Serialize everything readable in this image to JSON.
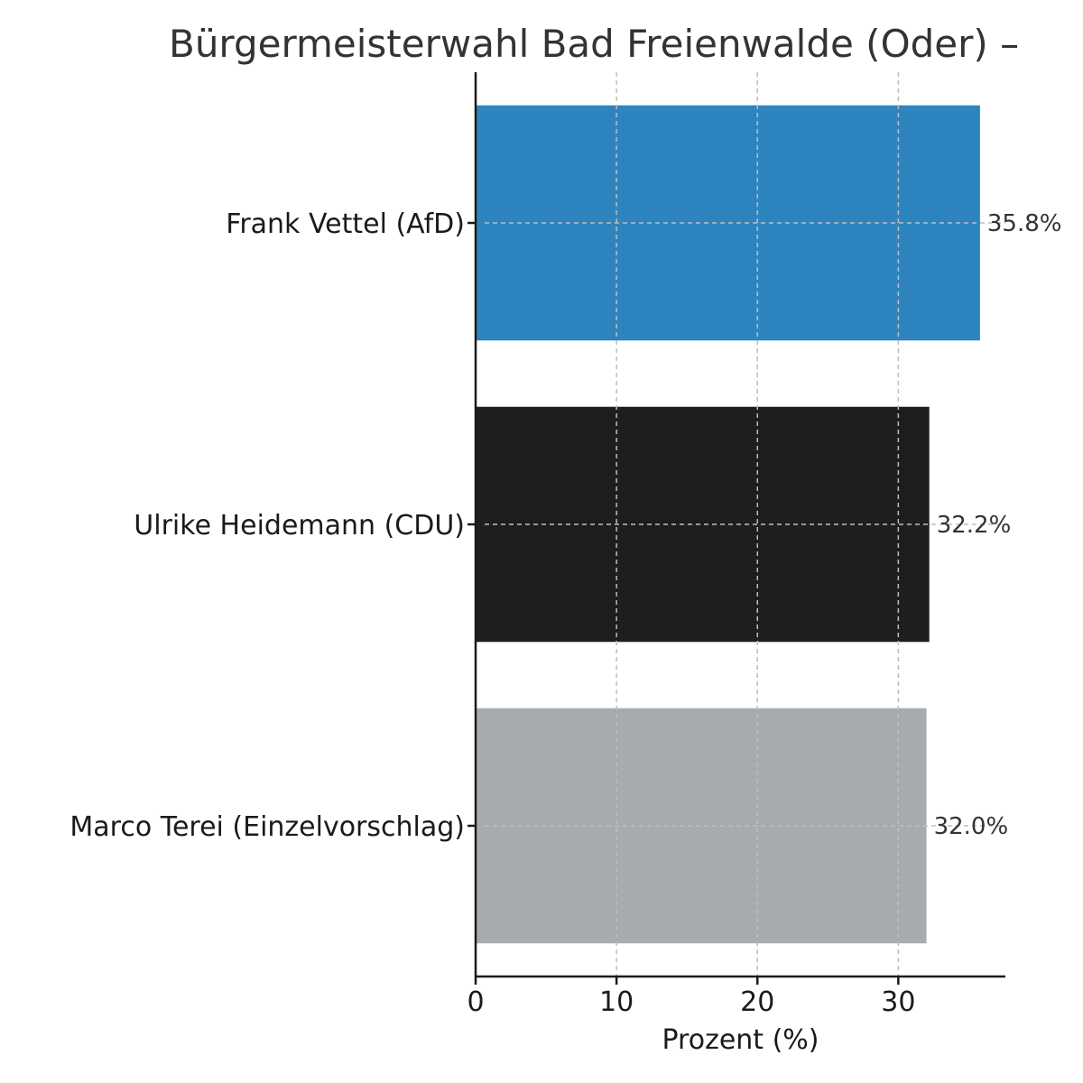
{
  "chart_data": {
    "type": "bar",
    "orientation": "horizontal",
    "title": "Bürgermeisterwahl Bad Freienwalde (Oder) –",
    "xlabel": "Prozent (%)",
    "ylabel": "",
    "categories": [
      "Frank Vettel (AfD)",
      "Ulrike Heidemann (CDU)",
      "Marco Terei (Einzelvorschlag)"
    ],
    "values": [
      35.8,
      32.2,
      32.0
    ],
    "value_labels": [
      "35.8%",
      "32.2%",
      "32.0%"
    ],
    "colors": [
      "#2e84bf",
      "#1e1e1e",
      "#a7abae"
    ],
    "xlim": [
      0,
      37.6
    ],
    "xticks": [
      0,
      10,
      20,
      30
    ],
    "grid": true,
    "legend": "none"
  }
}
